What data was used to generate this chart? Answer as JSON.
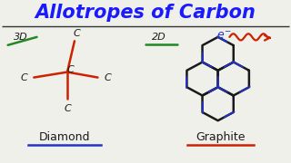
{
  "title": "Allotropes of Carbon",
  "title_color": "#1a1aff",
  "title_fontsize": 15,
  "bg_color": "#f0f0eb",
  "label_3d": "3D",
  "label_2d": "2D",
  "label_diamond": "Diamond",
  "label_graphite": "Graphite",
  "hand_color_red": "#cc2200",
  "hand_color_green": "#228822",
  "hand_color_blue": "#2233cc",
  "hand_color_dark": "#1a1a1a"
}
